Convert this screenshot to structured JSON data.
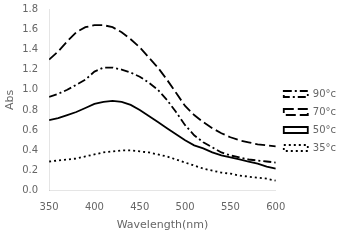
{
  "chart_data": {
    "type": "line",
    "x": [
      350,
      360,
      370,
      380,
      390,
      400,
      410,
      420,
      430,
      440,
      450,
      460,
      470,
      480,
      490,
      500,
      510,
      520,
      530,
      540,
      550,
      560,
      570,
      580,
      590,
      600
    ],
    "series": [
      {
        "name": "90°c",
        "color": "#000000",
        "line_style": "dashdot",
        "values": [
          0.93,
          0.96,
          1.0,
          1.05,
          1.1,
          1.18,
          1.22,
          1.22,
          1.2,
          1.17,
          1.13,
          1.07,
          1.0,
          0.9,
          0.78,
          0.65,
          0.55,
          0.48,
          0.43,
          0.38,
          0.35,
          0.33,
          0.31,
          0.3,
          0.29,
          0.28
        ]
      },
      {
        "name": "70°c",
        "color": "#000000",
        "line_style": "dashed",
        "values": [
          1.3,
          1.38,
          1.48,
          1.57,
          1.62,
          1.64,
          1.64,
          1.62,
          1.57,
          1.5,
          1.42,
          1.32,
          1.22,
          1.1,
          0.97,
          0.84,
          0.75,
          0.68,
          0.62,
          0.57,
          0.53,
          0.5,
          0.48,
          0.46,
          0.45,
          0.44
        ]
      },
      {
        "name": "50°c",
        "color": "#000000",
        "line_style": "solid",
        "values": [
          0.7,
          0.72,
          0.75,
          0.78,
          0.82,
          0.86,
          0.88,
          0.89,
          0.88,
          0.85,
          0.8,
          0.74,
          0.68,
          0.62,
          0.56,
          0.5,
          0.45,
          0.42,
          0.38,
          0.35,
          0.33,
          0.31,
          0.29,
          0.27,
          0.24,
          0.22
        ]
      },
      {
        "name": "35°c",
        "color": "#000000",
        "line_style": "dotted",
        "values": [
          0.29,
          0.3,
          0.31,
          0.32,
          0.34,
          0.36,
          0.38,
          0.39,
          0.4,
          0.4,
          0.39,
          0.38,
          0.36,
          0.34,
          0.31,
          0.28,
          0.25,
          0.22,
          0.2,
          0.18,
          0.17,
          0.15,
          0.14,
          0.13,
          0.12,
          0.1
        ]
      }
    ],
    "xlabel": "Wavelength(nm)",
    "ylabel": "Abs",
    "xlim": [
      350,
      600
    ],
    "ylim": [
      0.0,
      1.8
    ],
    "xticks": [
      350,
      400,
      450,
      500,
      550,
      600
    ],
    "yticks": [
      {
        "value": 0,
        "label": "0.0"
      },
      0.2,
      0.4,
      0.6,
      0.8,
      {
        "value": 1,
        "label": "1.0"
      },
      1.2,
      1.4,
      1.6,
      1.8
    ],
    "grid": false,
    "legend": "right"
  }
}
